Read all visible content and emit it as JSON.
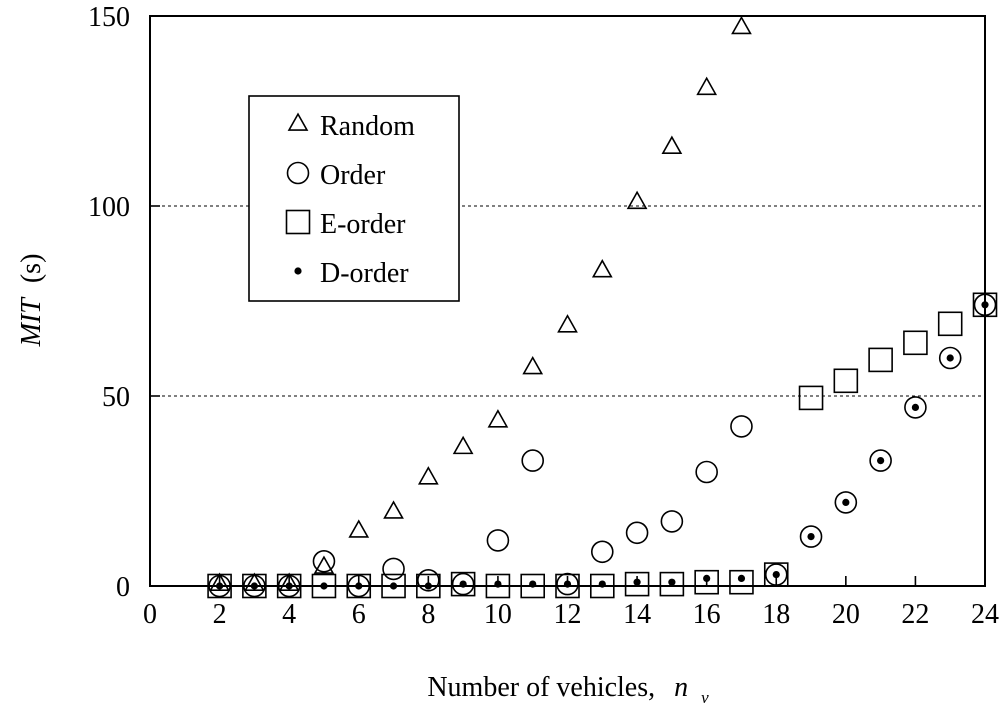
{
  "chart_data": {
    "type": "scatter",
    "title": "",
    "xlabel": "Number of vehicles,",
    "xlabel_var": "n",
    "xlabel_sub": "v",
    "ylabel": "MIT",
    "ylabel_unit": "(s)",
    "xlim": [
      0,
      24
    ],
    "ylim": [
      0,
      150
    ],
    "xticks": [
      "0",
      "2",
      "4",
      "6",
      "8",
      "10",
      "12",
      "14",
      "16",
      "18",
      "20",
      "22",
      "24"
    ],
    "yticks": [
      "0",
      "50",
      "100",
      "150"
    ],
    "grid": "horizontal dotted at 50 and 100",
    "legend_position": "top-left",
    "series": [
      {
        "name": "Random",
        "marker": "triangle",
        "x": [
          2,
          3,
          4,
          5,
          6,
          7,
          8,
          9,
          10,
          11,
          12,
          13,
          14,
          15,
          16,
          17
        ],
        "y": [
          0.5,
          0.5,
          0.5,
          5,
          14.5,
          19.5,
          28.5,
          36.5,
          43.5,
          57.5,
          68.5,
          83,
          101,
          115.5,
          131,
          147
        ]
      },
      {
        "name": "Order",
        "marker": "circle",
        "x": [
          2,
          3,
          4,
          5,
          6,
          7,
          8,
          9,
          10,
          11,
          12,
          13,
          14,
          15,
          16,
          17,
          18,
          19,
          20,
          21,
          22,
          23,
          24
        ],
        "y": [
          0,
          0,
          0,
          6.5,
          0,
          4.5,
          1.5,
          0.5,
          12,
          33,
          0.5,
          9,
          14,
          17,
          30,
          42,
          3,
          13,
          22,
          33,
          47,
          60,
          74
        ]
      },
      {
        "name": "E-order",
        "marker": "square",
        "x": [
          2,
          3,
          4,
          5,
          6,
          7,
          8,
          9,
          10,
          11,
          12,
          13,
          14,
          15,
          16,
          17,
          18,
          19,
          20,
          21,
          22,
          23,
          24
        ],
        "y": [
          0,
          0,
          0,
          0,
          0,
          0,
          0,
          0.5,
          0,
          0,
          0,
          0,
          0.5,
          0.5,
          1,
          1,
          3,
          49.5,
          54,
          59.5,
          64,
          69,
          74
        ]
      },
      {
        "name": "D-order",
        "marker": "dot",
        "x": [
          2,
          3,
          4,
          5,
          6,
          7,
          8,
          9,
          10,
          11,
          12,
          13,
          14,
          15,
          16,
          17,
          18,
          19,
          20,
          21,
          22,
          23,
          24
        ],
        "y": [
          0,
          0,
          0,
          0,
          0,
          0,
          0,
          0.5,
          0.5,
          0.5,
          0.5,
          0.5,
          1,
          1,
          2,
          2,
          3,
          13,
          22,
          33,
          47,
          60,
          74
        ]
      }
    ]
  }
}
